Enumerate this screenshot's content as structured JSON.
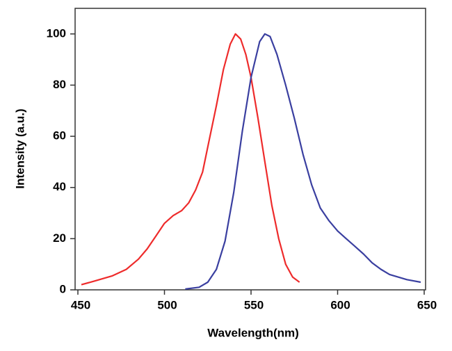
{
  "chart_data": {
    "type": "line",
    "x_label": "Wavelength(nm)",
    "y_label": "Intensity (a.u.)",
    "xlim": [
      450,
      650
    ],
    "ylim": [
      0,
      110
    ],
    "xticks": [
      450,
      500,
      550,
      600,
      650
    ],
    "yticks": [
      0,
      20,
      40,
      60,
      80,
      100
    ],
    "series": [
      {
        "color": "#ee2b2b",
        "x": [
          452,
          460,
          470,
          478,
          485,
          490,
          495,
          500,
          505,
          510,
          514,
          518,
          522,
          526,
          530,
          534,
          538,
          541,
          544,
          547,
          550,
          554,
          558,
          562,
          566,
          570,
          574,
          578
        ],
        "values": [
          2,
          3.5,
          5.5,
          8,
          12,
          16,
          21,
          26,
          29,
          31,
          34,
          39,
          46,
          59,
          72,
          86,
          96,
          100,
          98,
          92,
          83,
          67,
          50,
          33,
          20,
          10,
          5,
          3
        ]
      },
      {
        "color": "#3a3fa0",
        "x": [
          512,
          520,
          525,
          530,
          535,
          540,
          545,
          550,
          555,
          558,
          561,
          565,
          570,
          575,
          580,
          585,
          590,
          595,
          600,
          605,
          610,
          615,
          620,
          625,
          630,
          640,
          648
        ],
        "values": [
          0.3,
          1,
          3,
          8,
          19,
          38,
          62,
          83,
          97,
          100,
          99,
          92,
          80,
          67,
          53,
          41,
          32,
          27,
          23,
          20,
          17,
          14,
          10.5,
          8,
          6,
          4,
          3
        ]
      }
    ]
  }
}
